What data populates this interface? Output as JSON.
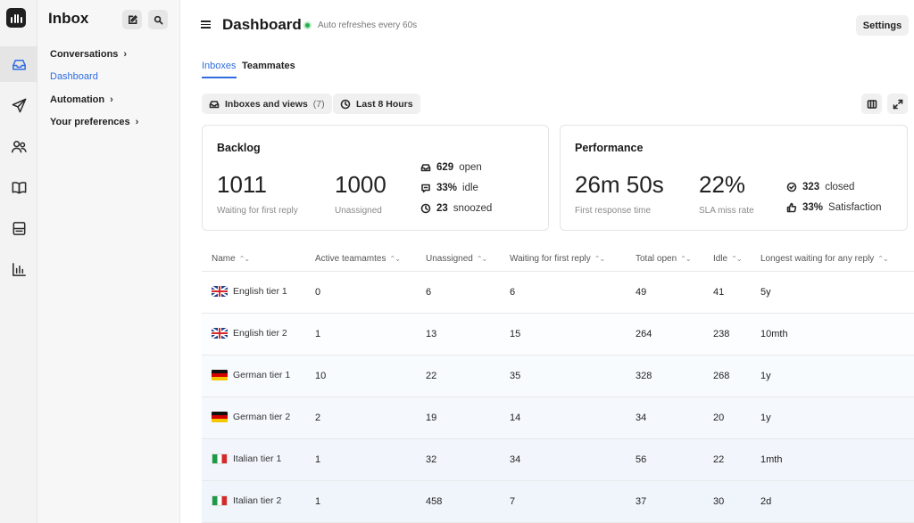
{
  "nav": {
    "title": "Inbox",
    "items": [
      {
        "label": "Conversations",
        "chevron": "›",
        "active": false
      },
      {
        "label": "Dashboard",
        "chevron": "",
        "active": true
      },
      {
        "label": "Automation",
        "chevron": "›",
        "active": false
      },
      {
        "label": "Your preferences",
        "chevron": "›",
        "active": false
      }
    ]
  },
  "rail": {
    "icons": [
      "inbox-icon",
      "send-icon",
      "people-icon",
      "book-icon",
      "report-icon",
      "bar-chart-icon"
    ],
    "active_color": "#2f6de0"
  },
  "header": {
    "title": "Dashboard",
    "refresh_note": "Auto refreshes every 60s",
    "settings_label": "Settings"
  },
  "tabs": [
    {
      "label": "Inboxes",
      "active": true
    },
    {
      "label": "Teammates",
      "active": false
    }
  ],
  "filters": {
    "inboxes_label": "Inboxes and views",
    "inboxes_count": "(7)",
    "time_label": "Last 8 Hours"
  },
  "backlog": {
    "title": "Backlog",
    "waiting_value": "1011",
    "waiting_label": "Waiting for first reply",
    "unassigned_value": "1000",
    "unassigned_label": "Unassigned",
    "stats": [
      {
        "value": "629",
        "label": "open",
        "icon": "inbox-icon"
      },
      {
        "value": "33%",
        "label": "idle",
        "icon": "chat-icon"
      },
      {
        "value": "23",
        "label": "snoozed",
        "icon": "clock-icon"
      }
    ]
  },
  "performance": {
    "title": "Performance",
    "response_value": "26m 50s",
    "response_label": "First response time",
    "sla_value": "22%",
    "sla_label": "SLA miss rate",
    "stats": [
      {
        "value": "323",
        "label": "closed",
        "icon": "check-circle-icon"
      },
      {
        "value": "33%",
        "label": "Satisfaction",
        "icon": "thumbs-up-icon"
      }
    ]
  },
  "table": {
    "sort_glyph": "⌃⌄",
    "columns": [
      "Name",
      "Active teamamtes",
      "Unassigned",
      "Waiting for first reply",
      "Total open",
      "Idle",
      "Longest waiting for any reply"
    ],
    "rows": [
      {
        "flag": "gb",
        "name": "English tier 1",
        "active": "0",
        "unassigned": "6",
        "waiting": "6",
        "total_open": "49",
        "idle": "41",
        "longest": "5y"
      },
      {
        "flag": "gb",
        "name": "English tier 2",
        "active": "1",
        "unassigned": "13",
        "waiting": "15",
        "total_open": "264",
        "idle": "238",
        "longest": "10mth"
      },
      {
        "flag": "de",
        "name": "German tier 1",
        "active": "10",
        "unassigned": "22",
        "waiting": "35",
        "total_open": "328",
        "idle": "268",
        "longest": "1y"
      },
      {
        "flag": "de",
        "name": "German tier 2",
        "active": "2",
        "unassigned": "19",
        "waiting": "14",
        "total_open": "34",
        "idle": "20",
        "longest": "1y"
      },
      {
        "flag": "it",
        "name": "Italian tier 1",
        "active": "1",
        "unassigned": "32",
        "waiting": "34",
        "total_open": "56",
        "idle": "22",
        "longest": "1mth"
      },
      {
        "flag": "it",
        "name": "Italian tier 2",
        "active": "1",
        "unassigned": "458",
        "waiting": "7",
        "total_open": "37",
        "idle": "30",
        "longest": "2d"
      }
    ]
  }
}
